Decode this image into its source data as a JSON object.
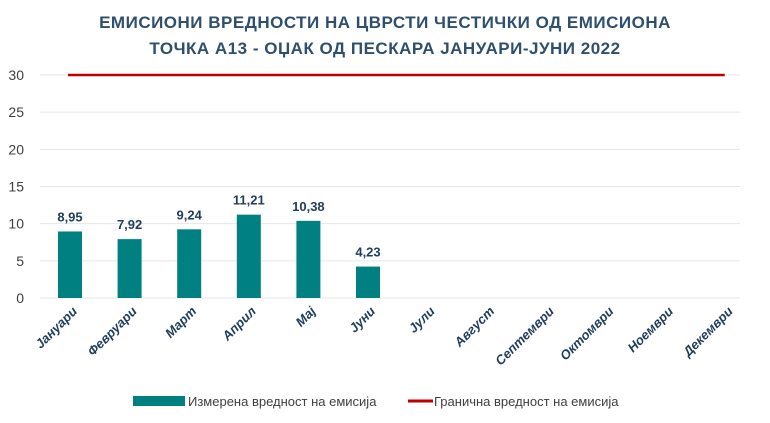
{
  "chart_data": {
    "type": "bar",
    "title": [
      "ЕМИСИОНИ ВРЕДНОСТИ НА ЦВРСТИ ЧЕСТИЧКИ ОД ЕМИСИОНА",
      "ТОЧКА А13 - ОЏАК ОД ПЕСКАРА ЈАНУАРИ-ЈУНИ 2022"
    ],
    "categories": [
      "Јануари",
      "Февруари",
      "Март",
      "Април",
      "Мај",
      "Јуни",
      "Јули",
      "Август",
      "Септември",
      "Октомври",
      "Ноември",
      "Декември"
    ],
    "series": [
      {
        "name": "Измерена вредност на емисија",
        "type": "bar",
        "color": "#008080",
        "values": [
          8.95,
          7.92,
          9.24,
          11.21,
          10.38,
          4.23,
          null,
          null,
          null,
          null,
          null,
          null
        ],
        "labels": [
          "8,95",
          "7,92",
          "9,24",
          "11,21",
          "10,38",
          "4,23"
        ]
      },
      {
        "name": "Гранична вредност на емисија",
        "type": "line",
        "color": "#c00000",
        "values": [
          30,
          30,
          30,
          30,
          30,
          30,
          30,
          30,
          30,
          30,
          30,
          30
        ]
      }
    ],
    "yticks": [
      0,
      5,
      10,
      15,
      20,
      25,
      30
    ],
    "ylim": [
      0,
      30
    ],
    "grid": true,
    "legend": "bottom"
  }
}
